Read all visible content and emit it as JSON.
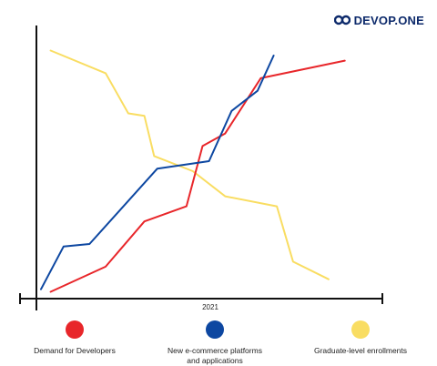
{
  "brand": {
    "name": "DEVOP.ONE",
    "logo_color": "#0d2a6b"
  },
  "chart_data": {
    "type": "line",
    "x_tick_label": "2021",
    "xlabel": "",
    "ylabel": "",
    "ylim": [
      0,
      100
    ],
    "grid": false,
    "legend_placement": "bottom",
    "series": [
      {
        "name": "Demand for Developers",
        "color": "#e8262a",
        "points": [
          [
            3,
            2
          ],
          [
            20,
            12
          ],
          [
            32,
            30
          ],
          [
            45,
            36
          ],
          [
            50,
            60
          ],
          [
            57,
            65
          ],
          [
            68,
            87
          ],
          [
            94,
            94
          ]
        ]
      },
      {
        "name": "New e-commerce platforms\nand applications",
        "color": "#0d47a1",
        "points": [
          [
            0,
            3
          ],
          [
            7,
            20
          ],
          [
            15,
            21
          ],
          [
            36,
            51
          ],
          [
            52,
            54
          ],
          [
            59,
            74
          ],
          [
            67,
            82
          ],
          [
            72,
            96
          ]
        ]
      },
      {
        "name": "Graduate-level enrollments",
        "color": "#f9dd62",
        "points": [
          [
            3,
            98
          ],
          [
            20,
            89
          ],
          [
            27,
            73
          ],
          [
            32,
            72
          ],
          [
            35,
            56
          ],
          [
            47,
            50
          ],
          [
            57,
            40
          ],
          [
            73,
            36
          ],
          [
            78,
            14
          ],
          [
            89,
            7
          ]
        ]
      }
    ]
  }
}
